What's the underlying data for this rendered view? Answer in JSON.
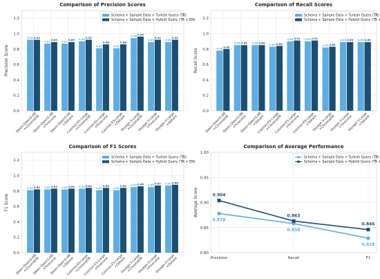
{
  "colors": {
    "light": "#5dade2",
    "dark": "#1b4f72",
    "grid": "#e3e3e3"
  },
  "chart_data": [
    {
      "type": "bar",
      "title": "Comparison of Precision Scores",
      "ylabel": "Precision Score",
      "ylim": [
        0,
        1.3
      ],
      "yticks": [
        "0.0",
        "0.2",
        "0.4",
        "0.6",
        "0.8",
        "1.0",
        "1.2"
      ],
      "categories": [
        "Qwen-Qwen3-8B\n+ChromaDB",
        "Qwen-Qwen3-8B\n+Pinecone",
        "Qwen-Qwen3-8B\n+Qdrant",
        "Cosmos-E5-Large\n+ChromaDB",
        "Cosmos-E5-Large\n+Pinecone",
        "Cosmos-E5-Large\n+Qdrant",
        "Voyage-3-Large\n+ChromaDB",
        "Voyage-3-Large\n+Pinecone",
        "Voyage-3-Large\n+Qdrant"
      ],
      "series": [
        {
          "name": "Schema + Sample Data + Turkish Query (TR)",
          "values": [
            0.92,
            0.87,
            0.87,
            0.9,
            0.81,
            0.81,
            0.94,
            0.89,
            0.89
          ],
          "labels": [
            "0.92",
            "0.87",
            "0.87",
            "0.90",
            "0.81",
            "0.81",
            "0.94",
            "0.89",
            "0.89"
          ]
        },
        {
          "name": "Schema + Sample Data + Hybrid Query (TR + EN)",
          "values": [
            0.92,
            0.89,
            0.89,
            0.92,
            0.86,
            0.86,
            0.96,
            0.92,
            0.92
          ],
          "labels": [
            "0.92",
            "0.89",
            "0.89",
            "0.92",
            "0.86",
            "0.86",
            "0.96",
            "0.92",
            "0.92"
          ]
        }
      ],
      "legend": "top-right",
      "grid": true
    },
    {
      "type": "bar",
      "title": "Comparison of Recall Scores",
      "ylabel": "Recall Score",
      "ylim": [
        0,
        1.3
      ],
      "yticks": [
        "0.0",
        "0.2",
        "0.4",
        "0.6",
        "0.8",
        "1.0",
        "1.2"
      ],
      "categories": [
        "Qwen-Qwen3-8B\n+ChromaDB",
        "Qwen-Qwen3-8B\n+Pinecone",
        "Qwen-Qwen3-8B\n+Qdrant",
        "Cosmos-E5-Large\n+ChromaDB",
        "Cosmos-E5-Large\n+Pinecone",
        "Cosmos-E5-Large\n+Qdrant",
        "Voyage-3-Large\n+ChromaDB",
        "Voyage-3-Large\n+Pinecone",
        "Voyage-3-Large\n+Qdrant"
      ],
      "series": [
        {
          "name": "Schema + Sample Data + Turkish Query (TR)",
          "values": [
            0.78,
            0.85,
            0.85,
            0.83,
            0.9,
            0.9,
            0.82,
            0.89,
            0.89
          ],
          "labels": [
            "0.78",
            "0.85",
            "0.85",
            "0.83",
            "0.90",
            "0.90",
            "0.82",
            "0.89",
            "0.89"
          ]
        },
        {
          "name": "Schema + Sample Data + Hybrid Query (TR + EN)",
          "values": [
            0.8,
            0.85,
            0.85,
            0.84,
            0.91,
            0.91,
            0.83,
            0.89,
            0.89
          ],
          "labels": [
            "0.80",
            "0.85",
            "0.85",
            "0.84",
            "0.91",
            "0.91",
            "0.83",
            "0.89",
            "0.89"
          ]
        }
      ],
      "legend": "top-right",
      "grid": true
    },
    {
      "type": "bar",
      "title": "Comparison of F1 Scores",
      "ylabel": "F1 Score",
      "ylim": [
        0,
        1.3
      ],
      "yticks": [
        "0.0",
        "0.2",
        "0.4",
        "0.6",
        "0.8",
        "1.0",
        "1.2"
      ],
      "categories": [
        "Qwen-Qwen3-8B\n+ChromaDB",
        "Qwen-Qwen3-8B\n+Pinecone",
        "Qwen-Qwen3-8B\n+Qdrant",
        "Cosmos-E5-Large\n+ChromaDB",
        "Cosmos-E5-Large\n+Pinecone",
        "Cosmos-E5-Large\n+Qdrant",
        "Voyage-3-Large\n+ChromaDB",
        "Voyage-3-Large\n+Pinecone",
        "Voyage-3-Large\n+Qdrant"
      ],
      "series": [
        {
          "name": "Schema + Sample Data + Turkish Query (TR)",
          "values": [
            0.81,
            0.82,
            0.82,
            0.83,
            0.81,
            0.81,
            0.85,
            0.85,
            0.87
          ],
          "labels": [
            "0.81",
            "0.82",
            "0.82",
            "0.83",
            "0.81",
            "0.81",
            "0.85",
            "0.85",
            "0.87"
          ]
        },
        {
          "name": "Schema + Sample Data + Hybrid Query (TR + EN)",
          "values": [
            0.82,
            0.83,
            0.83,
            0.84,
            0.84,
            0.84,
            0.86,
            0.87,
            0.88
          ],
          "labels": [
            "0.82",
            "0.83",
            "0.83",
            "0.84",
            "0.84",
            "0.84",
            "0.86",
            "0.87",
            "0.88"
          ]
        }
      ],
      "legend": "top-right",
      "grid": true
    },
    {
      "type": "line",
      "title": "Comparison of Average Performance",
      "ylabel": "Average Score",
      "ylim": [
        0.8,
        1.0
      ],
      "yticks": [
        "0.80",
        "0.85",
        "0.90",
        "0.95",
        "1.00"
      ],
      "categories": [
        "Precision",
        "Recall",
        "F1"
      ],
      "series": [
        {
          "name": "Schema + Sample Data + Turkish Query (TR)",
          "values": [
            0.878,
            0.858,
            0.829
          ],
          "labels": [
            "0.878",
            "0.858",
            "0.829"
          ],
          "marker": "circle"
        },
        {
          "name": "Schema + Sample Data + Hybrid Query (TR + EN)",
          "values": [
            0.904,
            0.863,
            0.846
          ],
          "labels": [
            "0.904",
            "0.863",
            "0.846"
          ],
          "marker": "square"
        }
      ],
      "legend": "top-right",
      "grid": true
    }
  ]
}
